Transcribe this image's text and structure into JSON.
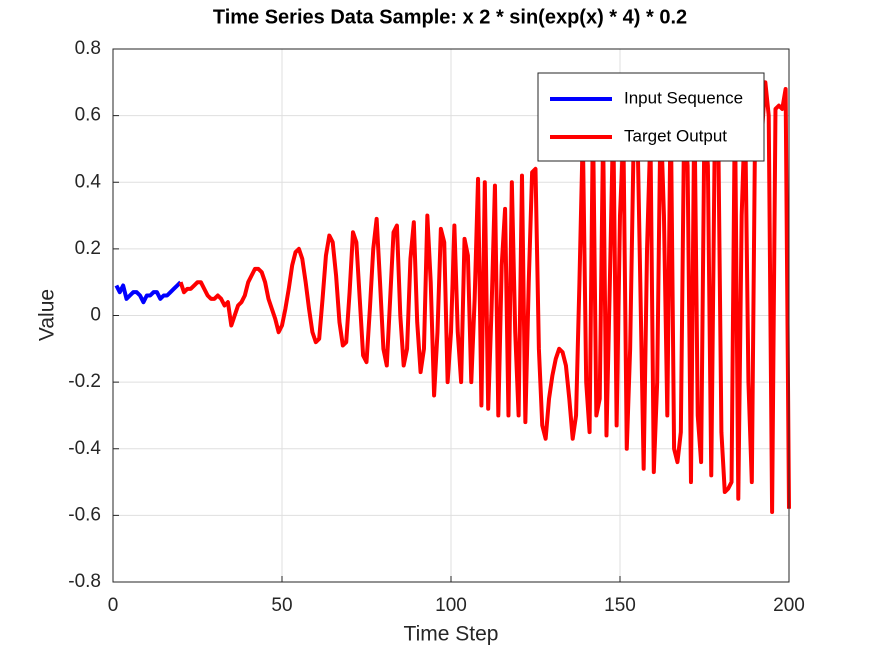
{
  "chart_data": {
    "type": "line",
    "title": "Time Series Data Sample: x  2 * sin(exp(x) * 4) * 0.2",
    "xlabel": "Time Step",
    "ylabel": "Value",
    "xlim": [
      0,
      200
    ],
    "xticks": [
      0,
      50,
      100,
      150,
      200
    ],
    "ylim": [
      -0.8,
      0.8
    ],
    "yticks": [
      -0.8,
      -0.6,
      -0.4,
      -0.2,
      0,
      0.2,
      0.4,
      0.6,
      0.8
    ],
    "grid": true,
    "legend": "upper right",
    "series": [
      {
        "name": "Input Sequence",
        "color": "#0000ff",
        "x": [
          1,
          2,
          3,
          4,
          5,
          6,
          7,
          8,
          9,
          10,
          11,
          12,
          13,
          14,
          15,
          16,
          17,
          18,
          19,
          20
        ],
        "values": [
          0.09,
          0.07,
          0.09,
          0.05,
          0.06,
          0.07,
          0.07,
          0.06,
          0.04,
          0.06,
          0.06,
          0.07,
          0.07,
          0.05,
          0.06,
          0.06,
          0.07,
          0.08,
          0.09,
          0.1
        ]
      },
      {
        "name": "Target Output",
        "color": "#ff0000",
        "x": [
          20,
          21,
          22,
          23,
          24,
          25,
          26,
          27,
          28,
          29,
          30,
          31,
          32,
          33,
          34,
          35,
          36,
          37,
          38,
          39,
          40,
          41,
          42,
          43,
          44,
          45,
          46,
          47,
          48,
          49,
          50,
          51,
          52,
          53,
          54,
          55,
          56,
          57,
          58,
          59,
          60,
          61,
          62,
          63,
          64,
          65,
          66,
          67,
          68,
          69,
          70,
          71,
          72,
          73,
          74,
          75,
          76,
          77,
          78,
          79,
          80,
          81,
          82,
          83,
          84,
          85,
          86,
          87,
          88,
          89,
          90,
          91,
          92,
          93,
          94,
          95,
          96,
          97,
          98,
          99,
          100,
          101,
          102,
          103,
          104,
          105,
          106,
          107,
          108,
          109,
          110,
          111,
          112,
          113,
          114,
          115,
          116,
          117,
          118,
          119,
          120,
          121,
          122,
          123,
          124,
          125,
          126,
          127,
          128,
          129,
          130,
          131,
          132,
          133,
          134,
          135,
          136,
          137,
          138,
          139,
          140,
          141,
          142,
          143,
          144,
          145,
          146,
          147,
          148,
          149,
          150,
          151,
          152,
          153,
          154,
          155,
          156,
          157,
          158,
          159,
          160,
          161,
          162,
          163,
          164,
          165,
          166,
          167,
          168,
          169,
          170,
          171,
          172,
          173,
          174,
          175,
          176,
          177,
          178,
          179,
          180,
          181,
          182,
          183,
          184,
          185,
          186,
          187,
          188,
          189,
          190,
          191,
          192,
          193,
          194,
          195,
          196,
          197,
          198,
          199,
          200
        ],
        "values": [
          0.1,
          0.07,
          0.08,
          0.08,
          0.09,
          0.1,
          0.1,
          0.08,
          0.06,
          0.05,
          0.05,
          0.06,
          0.05,
          0.03,
          0.04,
          -0.03,
          0.0,
          0.03,
          0.04,
          0.06,
          0.1,
          0.12,
          0.14,
          0.14,
          0.13,
          0.1,
          0.05,
          0.02,
          -0.01,
          -0.05,
          -0.03,
          0.02,
          0.08,
          0.15,
          0.19,
          0.2,
          0.17,
          0.1,
          0.02,
          -0.05,
          -0.08,
          -0.07,
          0.05,
          0.18,
          0.24,
          0.22,
          0.12,
          -0.02,
          -0.09,
          -0.08,
          0.07,
          0.25,
          0.22,
          0.05,
          -0.12,
          -0.14,
          0.02,
          0.2,
          0.29,
          0.1,
          -0.1,
          -0.15,
          0.05,
          0.25,
          0.27,
          0.0,
          -0.15,
          -0.1,
          0.17,
          0.28,
          -0.02,
          -0.17,
          -0.1,
          0.3,
          0.1,
          -0.24,
          -0.05,
          0.26,
          0.22,
          -0.2,
          -0.05,
          0.27,
          -0.05,
          -0.2,
          0.23,
          0.18,
          -0.2,
          0.05,
          0.41,
          -0.27,
          0.4,
          -0.28,
          0.02,
          0.39,
          -0.3,
          0.15,
          0.32,
          -0.3,
          0.4,
          -0.05,
          -0.3,
          0.42,
          -0.32,
          0.1,
          0.43,
          0.44,
          -0.1,
          -0.33,
          -0.37,
          -0.25,
          -0.18,
          -0.13,
          -0.1,
          -0.11,
          -0.15,
          -0.25,
          -0.37,
          -0.3,
          0.1,
          0.55,
          -0.2,
          -0.35,
          0.6,
          -0.3,
          -0.25,
          0.55,
          -0.36,
          0.1,
          0.6,
          -0.33,
          0.3,
          0.55,
          -0.4,
          -0.1,
          0.5,
          0.65,
          0.1,
          -0.46,
          0.2,
          0.55,
          -0.47,
          -0.2,
          0.62,
          0.3,
          -0.3,
          0.65,
          -0.4,
          -0.44,
          -0.35,
          0.6,
          0.45,
          -0.5,
          0.65,
          -0.3,
          -0.44,
          0.6,
          0.45,
          -0.48,
          0.5,
          0.62,
          -0.35,
          -0.53,
          -0.52,
          -0.5,
          0.65,
          -0.55,
          0.3,
          0.62,
          -0.2,
          -0.5,
          0.6,
          0.7,
          0.55,
          0.7,
          0.6,
          -0.59,
          0.62,
          0.63,
          0.62,
          0.68,
          -0.58
        ]
      }
    ]
  }
}
